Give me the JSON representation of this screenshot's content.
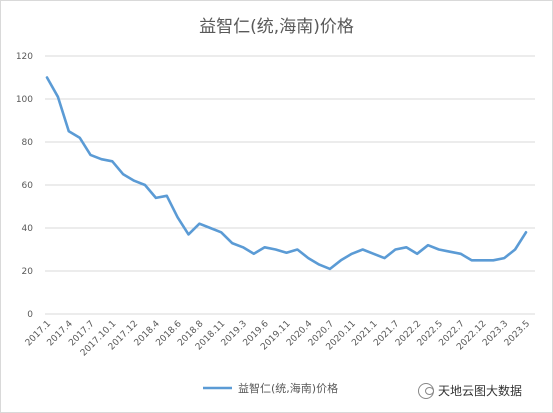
{
  "chart_data": {
    "type": "line",
    "title": "益智仁(统,海南)价格",
    "xlabel": "",
    "ylabel": "",
    "ylim": [
      0,
      120
    ],
    "yticks": [
      0,
      20,
      40,
      60,
      80,
      100,
      120
    ],
    "grid": true,
    "legend_position": "bottom",
    "x_tick_labels": [
      "2017.1",
      "2017.4",
      "2017.7",
      "2017.10.1",
      "2017.12",
      "2018.4",
      "2018.6",
      "2018.8",
      "2018.11",
      "2019.3",
      "2019.6",
      "2019.11",
      "2020.4",
      "2020.7",
      "2020.11",
      "2021.1",
      "2021.7",
      "2022.2",
      "2022.5",
      "2022.7",
      "2022.12",
      "2023.3",
      "2023.5"
    ],
    "series": [
      {
        "name": "益智仁(统,海南)价格",
        "color": "#5b9bd5",
        "values": [
          110,
          101,
          85,
          82,
          74,
          72,
          71,
          65,
          62,
          60,
          54,
          55,
          45,
          37,
          42,
          40,
          38,
          33,
          31,
          28,
          31,
          30,
          28.5,
          30,
          26,
          23,
          21,
          25,
          28,
          30,
          28,
          26,
          30,
          31,
          28,
          32,
          30,
          29,
          28,
          25,
          25,
          25,
          26,
          30,
          38
        ]
      }
    ]
  },
  "watermark": {
    "text": "天地云图大数据",
    "icon": "wechat-icon"
  }
}
